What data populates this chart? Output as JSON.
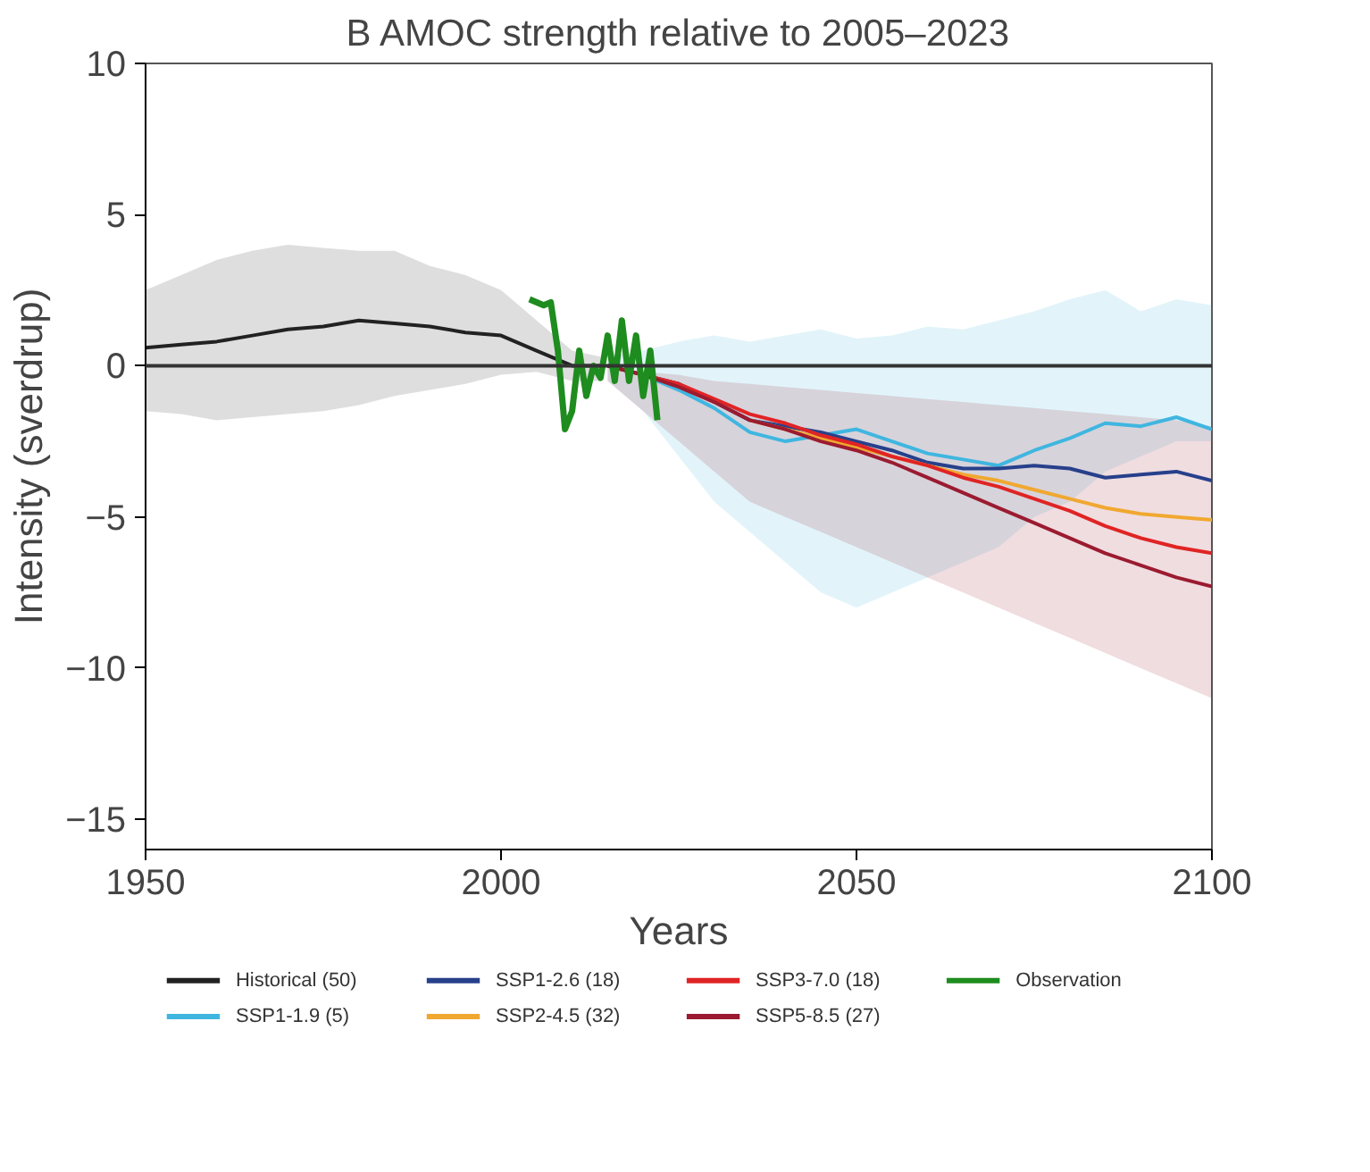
{
  "chart_data": {
    "type": "line",
    "title": "B AMOC strength relative to 2005–2023",
    "xlabel": "Years",
    "ylabel": "Intensity (sverdrup)",
    "xlim": [
      1950,
      2100
    ],
    "xticks": [
      1950,
      2000,
      2050,
      2100
    ],
    "ylim": [
      -16,
      10
    ],
    "yticks": [
      -15,
      -10,
      -5,
      0,
      5,
      10
    ],
    "grid": false,
    "legend": "bottom",
    "line_style": "solid",
    "marker": "none",
    "ref_lines": [
      {
        "axis": "y",
        "value": 0,
        "color": "#333333"
      }
    ],
    "series": [
      {
        "name": "Historical (50)",
        "color": "#222222",
        "x": [
          1950,
          1955,
          1960,
          1965,
          1970,
          1975,
          1980,
          1985,
          1990,
          1995,
          2000,
          2005,
          2010,
          2014
        ],
        "values": [
          0.6,
          0.7,
          0.8,
          1.0,
          1.2,
          1.3,
          1.5,
          1.4,
          1.3,
          1.1,
          1.0,
          0.5,
          0.0,
          0.0
        ],
        "upper": [
          2.5,
          3.0,
          3.5,
          3.8,
          4.0,
          3.9,
          3.8,
          3.8,
          3.3,
          3.0,
          2.5,
          1.5,
          0.5,
          0.3
        ],
        "lower": [
          -1.5,
          -1.6,
          -1.8,
          -1.7,
          -1.6,
          -1.5,
          -1.3,
          -1.0,
          -0.8,
          -0.6,
          -0.3,
          -0.2,
          -0.5,
          -0.5
        ]
      },
      {
        "name": "SSP1-1.9 (5)",
        "color": "#3fb6e0",
        "x": [
          2015,
          2020,
          2025,
          2030,
          2035,
          2040,
          2045,
          2050,
          2055,
          2060,
          2065,
          2070,
          2075,
          2080,
          2085,
          2090,
          2095,
          2100
        ],
        "values": [
          0,
          -0.3,
          -0.8,
          -1.4,
          -2.2,
          -2.5,
          -2.3,
          -2.1,
          -2.5,
          -2.9,
          -3.1,
          -3.3,
          -2.8,
          -2.4,
          -1.9,
          -2.0,
          -1.7,
          -2.1
        ],
        "upper": [
          0.3,
          0.5,
          0.8,
          1.0,
          0.8,
          1.0,
          1.2,
          0.9,
          1.0,
          1.3,
          1.2,
          1.5,
          1.8,
          2.2,
          2.5,
          1.8,
          2.2,
          2.0
        ],
        "lower": [
          -0.5,
          -1.5,
          -3,
          -4.5,
          -5.5,
          -6.5,
          -7.5,
          -8,
          -7.5,
          -7,
          -6.5,
          -6,
          -5,
          -4.5,
          -3.5,
          -3,
          -2.5,
          -2.5
        ]
      },
      {
        "name": "SSP1-2.6 (18)",
        "color": "#27408b",
        "x": [
          2015,
          2020,
          2025,
          2030,
          2035,
          2040,
          2045,
          2050,
          2055,
          2060,
          2065,
          2070,
          2075,
          2080,
          2085,
          2090,
          2095,
          2100
        ],
        "values": [
          0,
          -0.3,
          -0.6,
          -1.2,
          -1.8,
          -2.0,
          -2.2,
          -2.5,
          -2.8,
          -3.2,
          -3.4,
          -3.4,
          -3.3,
          -3.4,
          -3.7,
          -3.6,
          -3.5,
          -3.8
        ]
      },
      {
        "name": "SSP2-4.5 (32)",
        "color": "#f0a830",
        "x": [
          2035,
          2040,
          2045,
          2050,
          2055,
          2060,
          2065,
          2070,
          2075,
          2080,
          2085,
          2090,
          2095,
          2100
        ],
        "values": [
          -1.8,
          -2.1,
          -2.4,
          -2.7,
          -3.0,
          -3.3,
          -3.6,
          -3.8,
          -4.1,
          -4.4,
          -4.7,
          -4.9,
          -5.0,
          -5.1
        ]
      },
      {
        "name": "SSP3-7.0 (18)",
        "color": "#e02424",
        "x": [
          2015,
          2020,
          2025,
          2030,
          2035,
          2040,
          2045,
          2050,
          2055,
          2060,
          2065,
          2070,
          2075,
          2080,
          2085,
          2090,
          2095,
          2100
        ],
        "values": [
          0,
          -0.3,
          -0.6,
          -1.1,
          -1.6,
          -1.9,
          -2.3,
          -2.6,
          -3.0,
          -3.3,
          -3.7,
          -4.0,
          -4.4,
          -4.8,
          -5.3,
          -5.7,
          -6.0,
          -6.2
        ]
      },
      {
        "name": "SSP5-8.5 (27)",
        "color": "#9b1b30",
        "x": [
          2015,
          2020,
          2025,
          2030,
          2035,
          2040,
          2045,
          2050,
          2055,
          2060,
          2065,
          2070,
          2075,
          2080,
          2085,
          2090,
          2095,
          2100
        ],
        "values": [
          0,
          -0.3,
          -0.7,
          -1.2,
          -1.8,
          -2.1,
          -2.5,
          -2.8,
          -3.2,
          -3.7,
          -4.2,
          -4.7,
          -5.2,
          -5.7,
          -6.2,
          -6.6,
          -7.0,
          -7.3
        ],
        "upper": [
          0.0,
          -0.2,
          -0.3,
          -0.5,
          -0.6,
          -0.7,
          -0.8,
          -0.9,
          -1.0,
          -1.1,
          -1.2,
          -1.3,
          -1.4,
          -1.5,
          -1.6,
          -1.7,
          -1.8,
          -2.0
        ],
        "lower": [
          -0.5,
          -1.5,
          -2.5,
          -3.5,
          -4.5,
          -5.0,
          -5.5,
          -6.0,
          -6.5,
          -7.0,
          -7.5,
          -8.0,
          -8.5,
          -9.0,
          -9.5,
          -10.0,
          -10.5,
          -11.0
        ]
      },
      {
        "name": "Observation",
        "color": "#1e8c1e",
        "x": [
          2004,
          2006,
          2007,
          2008,
          2009,
          2010,
          2011,
          2012,
          2013,
          2014,
          2015,
          2016,
          2017,
          2018,
          2019,
          2020,
          2021,
          2022
        ],
        "values": [
          2.2,
          2.0,
          2.1,
          0.5,
          -2.1,
          -1.5,
          0.5,
          -1.0,
          0,
          -0.4,
          1.0,
          -0.5,
          1.5,
          -0.5,
          1.0,
          -1.0,
          0.5,
          -1.8
        ]
      }
    ]
  }
}
